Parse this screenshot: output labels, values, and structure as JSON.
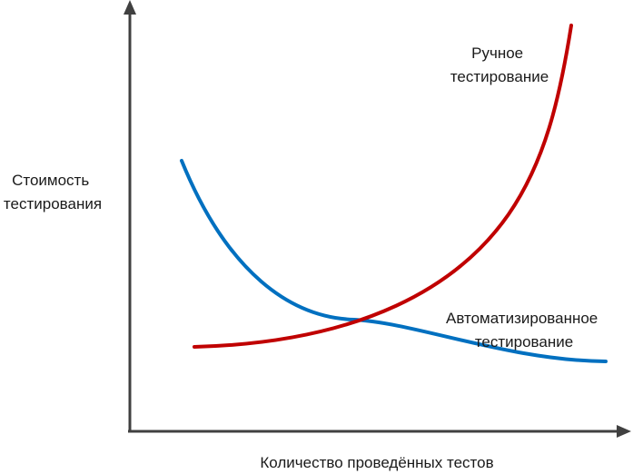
{
  "chart_data": {
    "type": "line",
    "qualitative": true,
    "ylabel_lines": [
      "Стоимость",
      "тестирования"
    ],
    "xlabel": "Количество проведённых тестов",
    "grid": false,
    "series": [
      {
        "id": "manual",
        "label_lines": [
          "Ручное",
          "тестирование"
        ],
        "color": "#c00000",
        "trend": "exponential-increase"
      },
      {
        "id": "automated",
        "label_lines": [
          "Автоматизированное",
          "тестирование"
        ],
        "color": "#0070c0",
        "trend": "decreasing-decay"
      }
    ]
  }
}
